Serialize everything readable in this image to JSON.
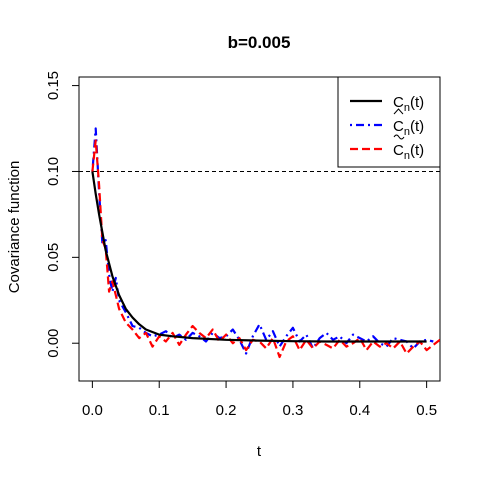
{
  "chart_data": {
    "type": "line",
    "title": "b=0.005",
    "xlabel": "t",
    "ylabel": "Covariance function",
    "xlim": [
      -0.02,
      0.52
    ],
    "ylim": [
      -0.022,
      0.155
    ],
    "xticks": [
      "0.0",
      "0.1",
      "0.2",
      "0.3",
      "0.4",
      "0.5"
    ],
    "yticks": [
      "0.00",
      "0.05",
      "0.10",
      "0.15"
    ],
    "reference_line": {
      "y": 0.1,
      "style": "dashed"
    },
    "legend_position": "top-right",
    "series": [
      {
        "name": "C_n(t)",
        "legend_main": "C",
        "legend_sub": "n",
        "legend_suffix": "(t)",
        "legend_accent": "",
        "color": "#000000",
        "style": "solid",
        "x": [
          0.0,
          0.005,
          0.01,
          0.02,
          0.03,
          0.04,
          0.05,
          0.06,
          0.07,
          0.08,
          0.1,
          0.12,
          0.15,
          0.2,
          0.25,
          0.3,
          0.35,
          0.4,
          0.45,
          0.5
        ],
        "values": [
          0.1,
          0.087,
          0.075,
          0.054,
          0.039,
          0.028,
          0.02,
          0.015,
          0.011,
          0.008,
          0.005,
          0.004,
          0.003,
          0.002,
          0.0015,
          0.0012,
          0.001,
          0.001,
          0.001,
          0.001
        ]
      },
      {
        "name": "Ĉ_n(t)",
        "legend_main": "C",
        "legend_sub": "n",
        "legend_suffix": "(t)",
        "legend_accent": "hat",
        "color": "#0000ff",
        "style": "dotdash",
        "x": [
          0.0,
          0.005,
          0.01,
          0.015,
          0.02,
          0.025,
          0.03,
          0.035,
          0.04,
          0.05,
          0.06,
          0.07,
          0.08,
          0.09,
          0.1,
          0.11,
          0.12,
          0.13,
          0.14,
          0.15,
          0.16,
          0.17,
          0.18,
          0.19,
          0.2,
          0.21,
          0.22,
          0.23,
          0.24,
          0.25,
          0.26,
          0.27,
          0.28,
          0.29,
          0.3,
          0.31,
          0.32,
          0.33,
          0.34,
          0.35,
          0.36,
          0.37,
          0.38,
          0.39,
          0.4,
          0.41,
          0.42,
          0.43,
          0.44,
          0.45,
          0.46,
          0.47,
          0.48,
          0.49,
          0.5,
          0.51
        ],
        "values": [
          0.1,
          0.125,
          0.088,
          0.058,
          0.06,
          0.04,
          0.03,
          0.038,
          0.025,
          0.018,
          0.01,
          0.009,
          0.006,
          0.004,
          0.005,
          0.007,
          0.003,
          0.005,
          0.002,
          0.006,
          0.004,
          0.001,
          0.006,
          0.003,
          0.004,
          0.008,
          0.002,
          -0.006,
          0.004,
          0.011,
          0.002,
          0.007,
          -0.002,
          0.004,
          0.009,
          0.001,
          0.005,
          -0.003,
          0.003,
          0.006,
          0.002,
          0.004,
          0.0,
          0.005,
          0.003,
          0.001,
          0.004,
          0.0,
          -0.002,
          0.003,
          0.002,
          0.001,
          -0.003,
          0.001,
          0.002,
          0.001
        ]
      },
      {
        "name": "C̃_n(t)",
        "legend_main": "C",
        "legend_sub": "n",
        "legend_suffix": "(t)",
        "legend_accent": "tilde",
        "color": "#ff0000",
        "style": "dashed",
        "x": [
          0.0,
          0.005,
          0.01,
          0.015,
          0.02,
          0.025,
          0.03,
          0.035,
          0.04,
          0.05,
          0.06,
          0.07,
          0.08,
          0.09,
          0.1,
          0.11,
          0.12,
          0.13,
          0.14,
          0.15,
          0.16,
          0.17,
          0.18,
          0.19,
          0.2,
          0.21,
          0.22,
          0.23,
          0.24,
          0.25,
          0.26,
          0.27,
          0.28,
          0.29,
          0.3,
          0.31,
          0.32,
          0.33,
          0.34,
          0.35,
          0.36,
          0.37,
          0.38,
          0.39,
          0.4,
          0.41,
          0.42,
          0.43,
          0.44,
          0.45,
          0.46,
          0.47,
          0.48,
          0.49,
          0.5,
          0.51,
          0.52
        ],
        "values": [
          0.1,
          0.118,
          0.092,
          0.06,
          0.055,
          0.03,
          0.036,
          0.028,
          0.02,
          0.012,
          0.008,
          0.003,
          0.006,
          -0.002,
          0.004,
          0.001,
          0.006,
          -0.001,
          0.005,
          0.01,
          0.006,
          0.003,
          0.008,
          0.001,
          0.005,
          0.0,
          0.003,
          -0.004,
          0.002,
          0.001,
          -0.003,
          0.003,
          -0.008,
          0.001,
          0.004,
          -0.004,
          0.002,
          -0.003,
          0.001,
          -0.001,
          -0.003,
          0.002,
          -0.002,
          0.0,
          0.003,
          -0.004,
          0.001,
          -0.002,
          0.0,
          -0.003,
          0.001,
          -0.006,
          -0.002,
          0.001,
          -0.004,
          -0.001,
          0.002
        ]
      }
    ]
  }
}
